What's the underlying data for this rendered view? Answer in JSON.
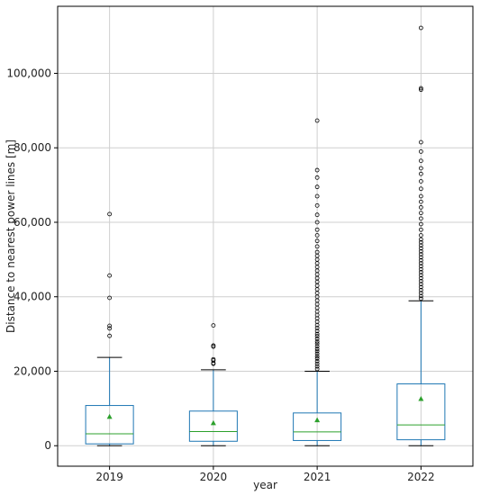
{
  "chart_data": {
    "type": "box",
    "xlabel": "year",
    "ylabel": "Distance to nearest power lines [m]",
    "ylim": [
      -5500,
      118000
    ],
    "grid": true,
    "yticks": [
      0,
      20000,
      40000,
      60000,
      80000,
      100000
    ],
    "ytick_labels": [
      "0",
      "20,000",
      "40,000",
      "60,000",
      "80,000",
      "100,000"
    ],
    "categories": [
      "2019",
      "2020",
      "2021",
      "2022"
    ],
    "colors": {
      "box": "#1f77b4",
      "median": "#2ca02c",
      "mean": "#2ca02c",
      "whisker_cap": "#000000",
      "grid": "#cfcfcf"
    },
    "boxes": [
      {
        "category": "2019",
        "whisker_low": 0,
        "q1": 500,
        "median": 3200,
        "q3": 10800,
        "whisker_high": 23700,
        "mean": 7700,
        "outliers": [
          29500,
          31500,
          32200,
          39700,
          45700,
          62200
        ]
      },
      {
        "category": "2020",
        "whisker_low": 0,
        "q1": 1200,
        "median": 3800,
        "q3": 9300,
        "whisker_high": 20400,
        "mean": 6000,
        "outliers": [
          22000,
          22200,
          22900,
          23200,
          26600,
          26900,
          32300
        ]
      },
      {
        "category": "2021",
        "whisker_low": 0,
        "q1": 1400,
        "median": 3700,
        "q3": 8800,
        "whisker_high": 20000,
        "mean": 6800,
        "outliers": [
          20600,
          21300,
          22000,
          22700,
          23400,
          24000,
          24700,
          25400,
          26000,
          26700,
          27400,
          28000,
          28700,
          29400,
          30000,
          30800,
          31600,
          32400,
          33300,
          34200,
          35100,
          36000,
          37000,
          38000,
          39000,
          40000,
          41000,
          42000,
          43000,
          44000,
          45000,
          46000,
          47000,
          48000,
          49000,
          50000,
          51000,
          52000,
          53500,
          55000,
          56500,
          58000,
          60000,
          62000,
          64500,
          67000,
          69500,
          72000,
          74000,
          87300
        ]
      },
      {
        "category": "2022",
        "whisker_low": 0,
        "q1": 1600,
        "median": 5600,
        "q3": 16600,
        "whisker_high": 38900,
        "mean": 12500,
        "outliers": [
          39500,
          40200,
          41000,
          41800,
          42600,
          43400,
          44200,
          45000,
          45800,
          46600,
          47400,
          48200,
          49000,
          49800,
          50600,
          51400,
          52200,
          53000,
          53800,
          54600,
          55400,
          56500,
          58000,
          59500,
          61000,
          62500,
          64000,
          65500,
          67000,
          69000,
          71000,
          73000,
          74500,
          76500,
          79000,
          81500,
          95600,
          96000,
          112200
        ]
      }
    ]
  }
}
